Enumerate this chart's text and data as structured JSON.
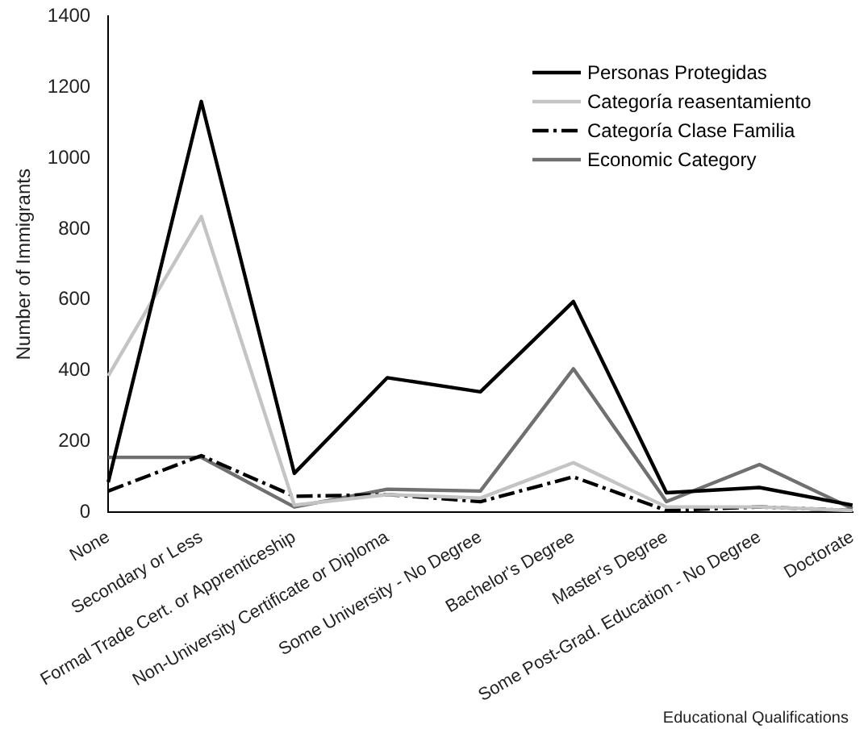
{
  "chart_data": {
    "type": "line",
    "ylabel": "Number of Immigrants",
    "xlabel": "Educational Qualifications",
    "categories": [
      "None",
      "Secondary or Less",
      "Formal Trade Cert. or Apprenticeship",
      "Non-University Certificate or Diploma",
      "Some University - No Degree",
      "Bachelor's Degree",
      "Master's Degree",
      "Some Post-Grad. Education - No Degree",
      "Doctorate"
    ],
    "series": [
      {
        "name": "Personas Protegidas",
        "color": "#000000",
        "line_style": "solid",
        "values": [
          85,
          1160,
          110,
          380,
          340,
          595,
          55,
          70,
          20
        ]
      },
      {
        "name": "Categoría reasentamiento",
        "color": "#c4c4c4",
        "line_style": "solid",
        "values": [
          385,
          835,
          20,
          50,
          40,
          140,
          15,
          15,
          5
        ]
      },
      {
        "name": "Categoría Clase Familia",
        "color": "#000000",
        "line_style": "dashed",
        "values": [
          60,
          160,
          45,
          50,
          30,
          100,
          5,
          15,
          5
        ]
      },
      {
        "name": "Economic Category",
        "color": "#707070",
        "line_style": "solid",
        "values": [
          155,
          155,
          15,
          65,
          60,
          405,
          30,
          135,
          10
        ]
      }
    ],
    "ylim": [
      0,
      1400
    ],
    "yticks": [
      0,
      200,
      400,
      600,
      800,
      1000,
      1200,
      1400
    ],
    "grid": false,
    "legend": "top right",
    "marker": "none"
  }
}
